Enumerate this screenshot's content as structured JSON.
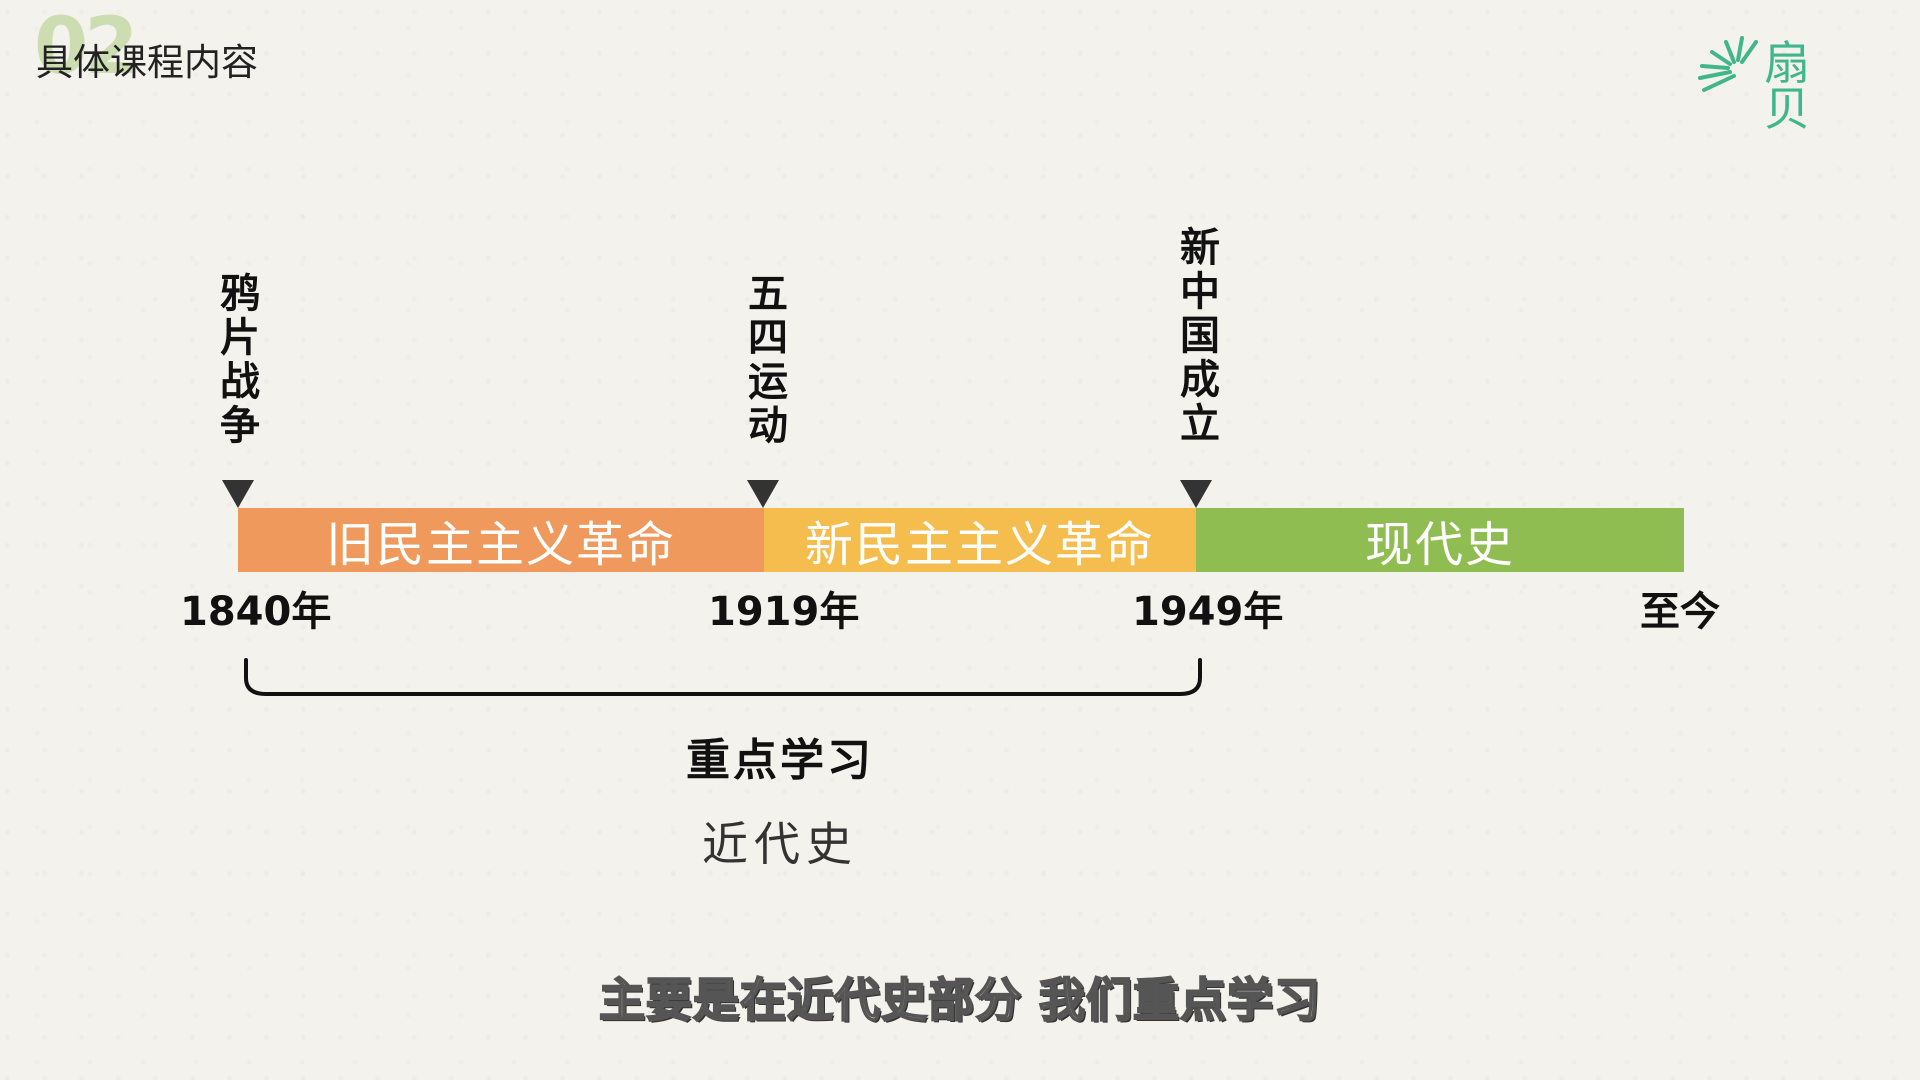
{
  "header": {
    "section_number": "02",
    "title": "具体课程内容"
  },
  "logo": {
    "text": "扇贝",
    "accent_color": "#3fb68b"
  },
  "timeline": {
    "events": [
      {
        "label": "鸦片战争"
      },
      {
        "label": "五四运动"
      },
      {
        "label": "新中国成立"
      }
    ],
    "segments": [
      {
        "label": "旧民主主义革命",
        "color": "#ef9a5c"
      },
      {
        "label": "新民主主义革命",
        "color": "#f5bd4e"
      },
      {
        "label": "现代史",
        "color": "#8fbd52"
      }
    ],
    "years": [
      "1840年",
      "1919年",
      "1949年",
      "至今"
    ],
    "focus_label": "重点学习",
    "focus_period": "近代史"
  },
  "subtitle": "主要是在近代史部分 我们重点学习"
}
